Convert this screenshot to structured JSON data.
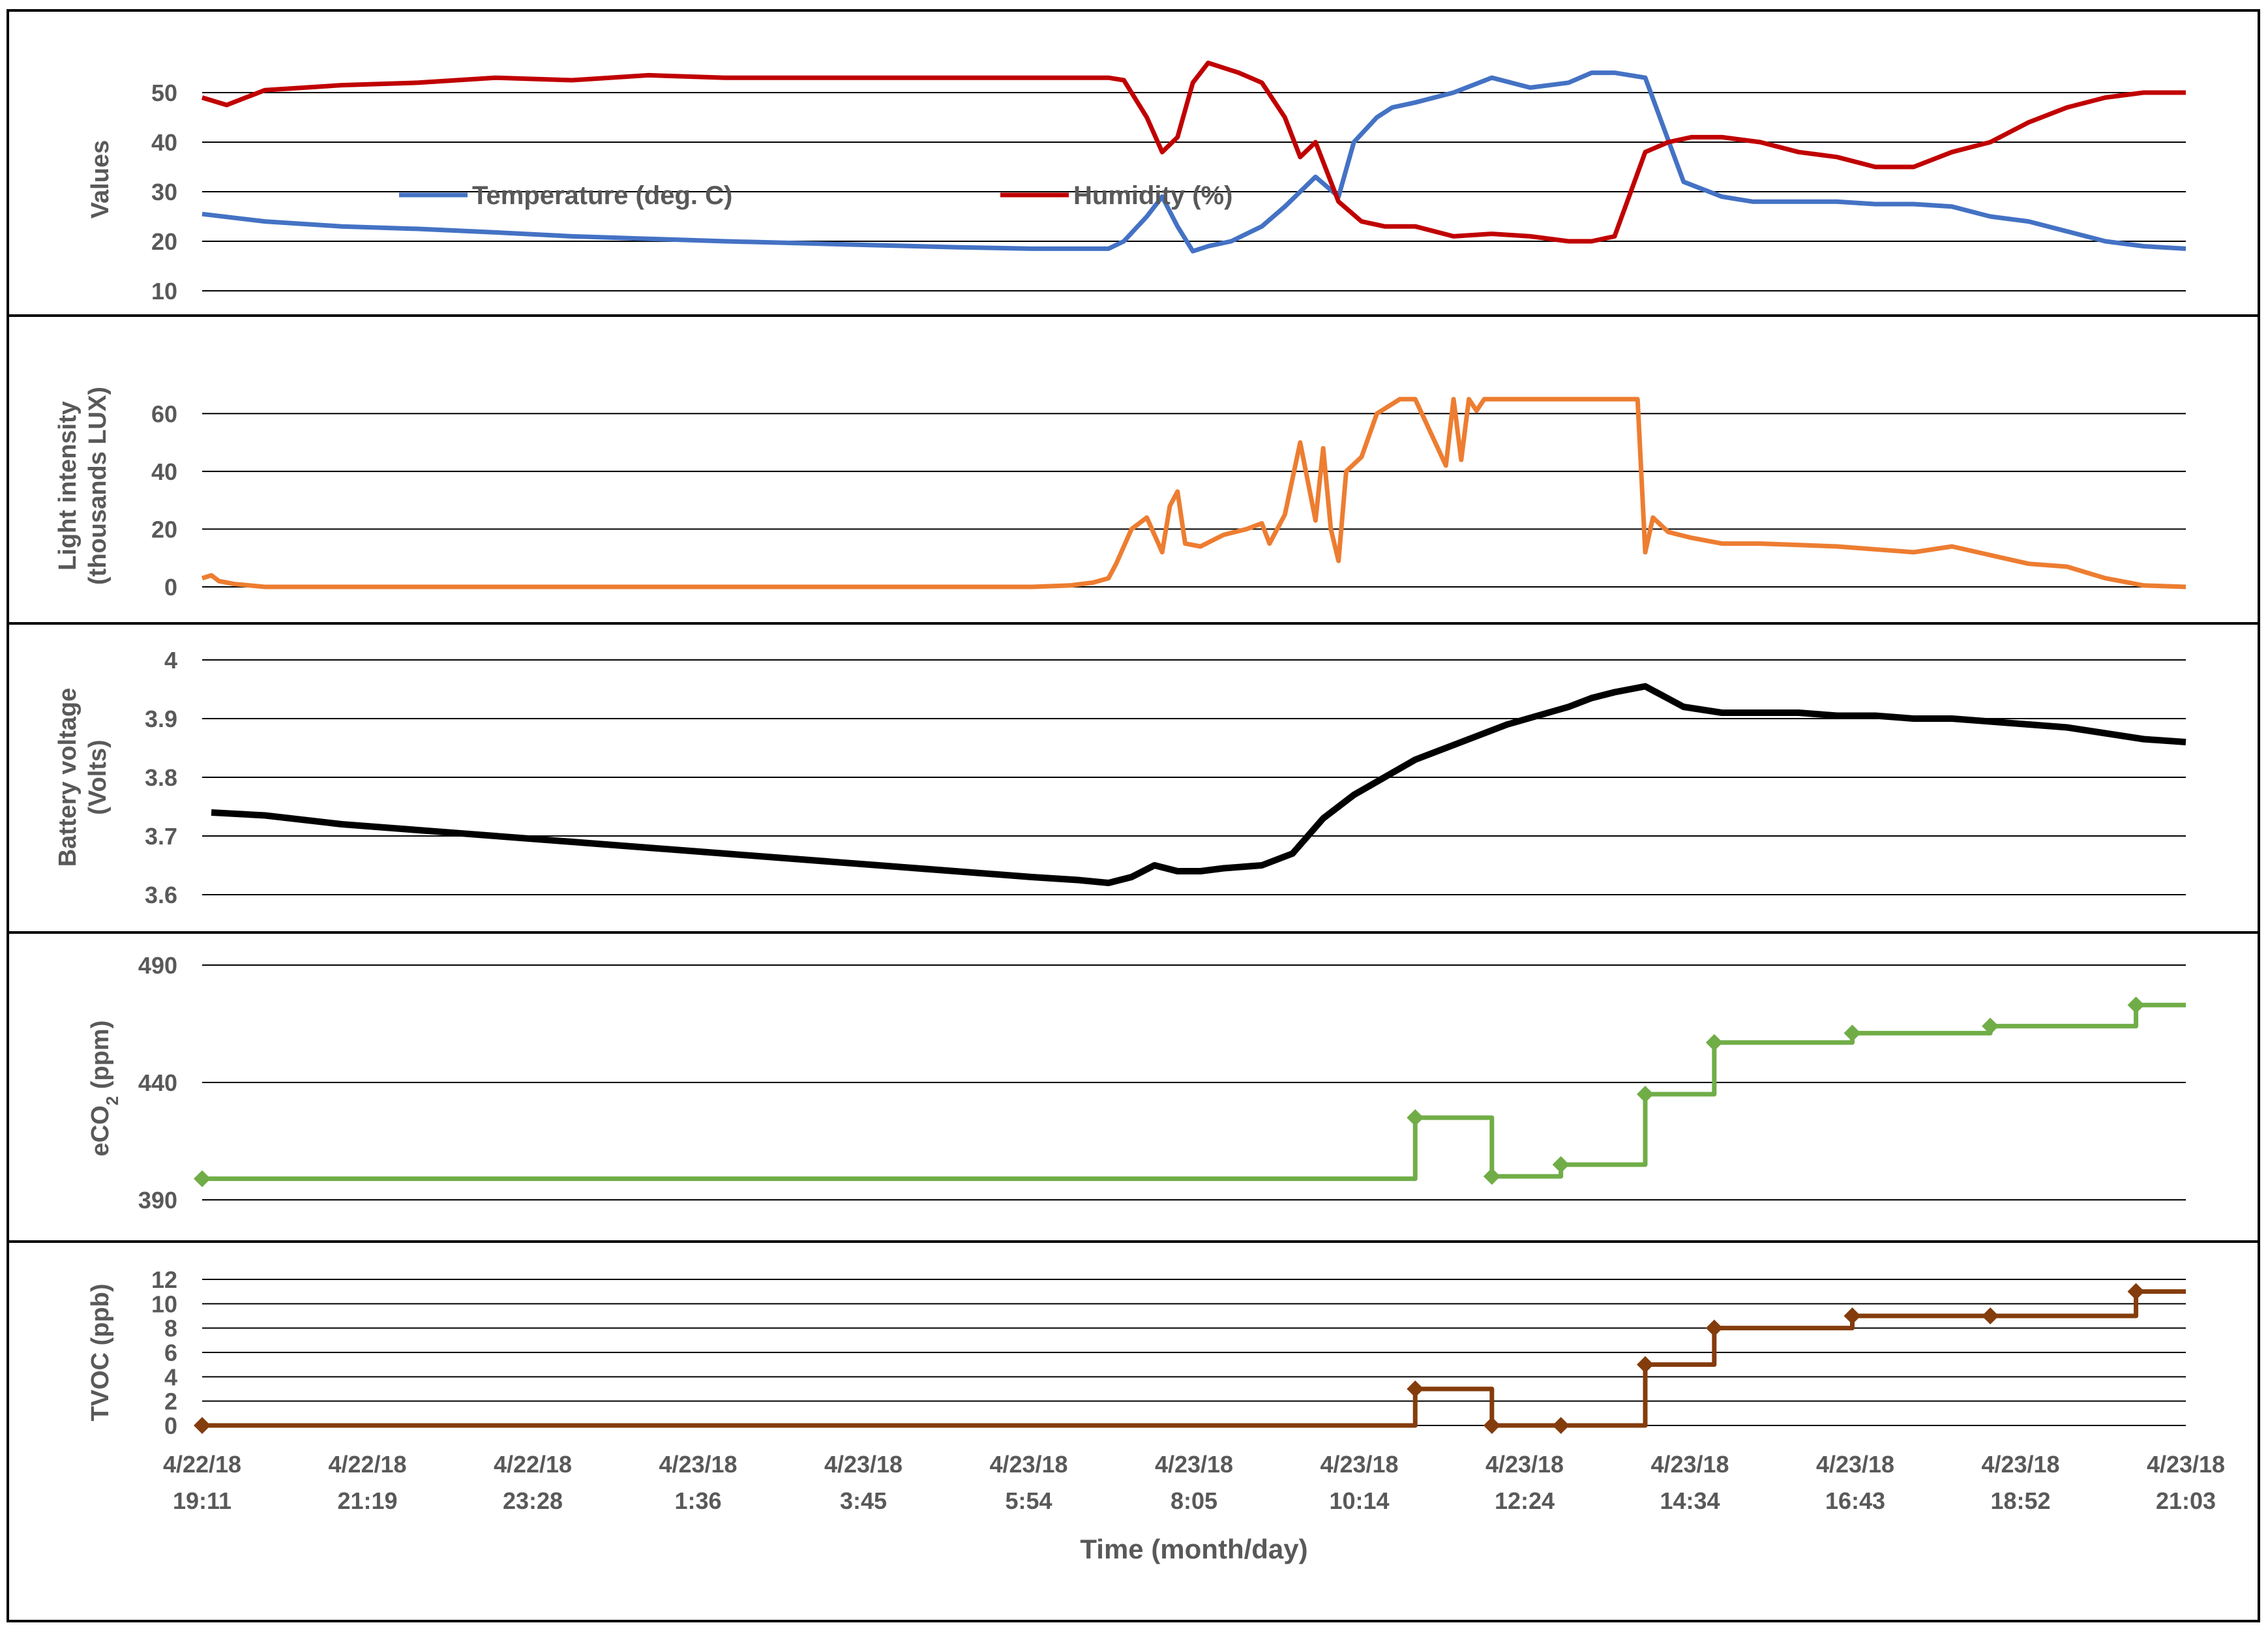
{
  "chart_data": {
    "type": "line",
    "xlabel": "Time (month/day)",
    "x_tick_labels": [
      {
        "date": "4/22/18",
        "time": "19:11"
      },
      {
        "date": "4/22/18",
        "time": "21:19"
      },
      {
        "date": "4/22/18",
        "time": "23:28"
      },
      {
        "date": "4/23/18",
        "time": "1:36"
      },
      {
        "date": "4/23/18",
        "time": "3:45"
      },
      {
        "date": "4/23/18",
        "time": "5:54"
      },
      {
        "date": "4/23/18",
        "time": "8:05"
      },
      {
        "date": "4/23/18",
        "time": "10:14"
      },
      {
        "date": "4/23/18",
        "time": "12:24"
      },
      {
        "date": "4/23/18",
        "time": "14:34"
      },
      {
        "date": "4/23/18",
        "time": "16:43"
      },
      {
        "date": "4/23/18",
        "time": "18:52"
      },
      {
        "date": "4/23/18",
        "time": "21:03"
      }
    ],
    "x_range_hours": [
      19.18,
      45.05
    ],
    "panels": [
      {
        "id": "values",
        "ylabel": "Values",
        "ylim": [
          10,
          55
        ],
        "yticks": [
          10,
          20,
          30,
          40,
          50
        ],
        "legend": "inside",
        "series": [
          {
            "name": "Temperature (deg. C)",
            "color": "#4472C4",
            "x": [
              19.18,
              20.0,
              21.0,
              22.0,
              23.0,
              24.0,
              25.0,
              26.0,
              27.0,
              28.0,
              29.0,
              30.0,
              31.0,
              31.2,
              31.5,
              31.7,
              31.9,
              32.1,
              32.3,
              32.6,
              33.0,
              33.3,
              33.7,
              34.0,
              34.2,
              34.5,
              34.7,
              35.0,
              35.5,
              36.0,
              36.5,
              37.0,
              37.3,
              37.6,
              38.0,
              38.5,
              39.0,
              39.4,
              39.7,
              40.0,
              40.5,
              41.0,
              41.5,
              42.0,
              42.5,
              43.0,
              43.5,
              44.0,
              44.5,
              45.05
            ],
            "y": [
              25.5,
              24,
              23,
              22.5,
              21.8,
              21,
              20.5,
              20,
              19.6,
              19.2,
              18.8,
              18.5,
              18.5,
              20,
              25,
              29,
              23,
              18,
              19,
              20,
              23,
              27,
              33,
              29,
              40,
              45,
              47,
              48,
              50,
              53,
              51,
              52,
              54,
              54,
              53,
              32,
              29,
              28,
              28,
              28,
              28,
              27.5,
              27.5,
              27,
              25,
              24,
              22,
              20,
              19,
              18.5
            ]
          },
          {
            "name": "Humidity (%)",
            "color": "#C00000",
            "x": [
              19.18,
              19.5,
              20.0,
              21.0,
              22.0,
              23.0,
              24.0,
              25.0,
              26.0,
              27.0,
              28.0,
              29.0,
              30.0,
              31.0,
              31.2,
              31.5,
              31.7,
              31.9,
              32.1,
              32.3,
              32.7,
              33.0,
              33.3,
              33.5,
              33.7,
              34.0,
              34.3,
              34.6,
              35.0,
              35.5,
              36.0,
              36.5,
              37.0,
              37.3,
              37.6,
              38.0,
              38.3,
              38.6,
              39.0,
              39.5,
              40.0,
              40.5,
              41.0,
              41.5,
              42.0,
              42.5,
              43.0,
              43.5,
              44.0,
              44.5,
              45.05
            ],
            "y": [
              49,
              47.5,
              50.5,
              51.5,
              52,
              53,
              52.5,
              53.5,
              53,
              53,
              53,
              53,
              53,
              53,
              52.5,
              45,
              38,
              41,
              52,
              56,
              54,
              52,
              45,
              37,
              40,
              28,
              24,
              23,
              23,
              21,
              21.5,
              21,
              20,
              20,
              21,
              38,
              40,
              41,
              41,
              40,
              38,
              37,
              35,
              35,
              38,
              40,
              44,
              47,
              49,
              50,
              50
            ]
          }
        ]
      },
      {
        "id": "light",
        "ylabel": "Light intensity (thousands LUX)",
        "ylabel_lines": [
          "Light intensity",
          "(thousands LUX)"
        ],
        "ylim": [
          0,
          70
        ],
        "yticks": [
          0,
          20,
          40,
          60
        ],
        "series": [
          {
            "name": "Light intensity",
            "color": "#ED7D31",
            "x": [
              19.18,
              19.3,
              19.4,
              19.6,
              20.0,
              21.0,
              23.0,
              25.0,
              27.0,
              29.0,
              30.0,
              30.5,
              30.8,
              31.0,
              31.1,
              31.3,
              31.5,
              31.7,
              31.8,
              31.9,
              32.0,
              32.2,
              32.5,
              32.8,
              33.0,
              33.1,
              33.3,
              33.5,
              33.7,
              33.8,
              33.9,
              34.0,
              34.1,
              34.3,
              34.5,
              34.8,
              35.0,
              35.4,
              35.5,
              35.6,
              35.7,
              35.8,
              35.9,
              36.0,
              36.5,
              37.0,
              37.5,
              37.9,
              38.0,
              38.1,
              38.3,
              38.6,
              39.0,
              39.5,
              40.0,
              40.5,
              41.0,
              41.5,
              42.0,
              42.5,
              43.0,
              43.5,
              44.0,
              44.5,
              45.05
            ],
            "y": [
              3,
              4,
              2,
              1,
              0,
              0,
              0,
              0,
              0,
              0,
              0,
              0.5,
              1.5,
              3,
              8,
              20,
              24,
              12,
              28,
              33,
              15,
              14,
              18,
              20,
              22,
              15,
              25,
              50,
              23,
              48,
              20,
              9,
              40,
              45,
              60,
              65,
              65,
              42,
              65,
              44,
              65,
              61,
              65,
              65,
              65,
              65,
              65,
              65,
              12,
              24,
              19,
              17,
              15,
              15,
              14.5,
              14,
              13,
              12,
              14,
              11,
              8,
              7,
              3,
              0.5,
              0
            ]
          }
        ]
      },
      {
        "id": "battery",
        "ylabel": "Battery voltage (Volts)",
        "ylabel_lines": [
          "Battery voltage",
          "(Volts)"
        ],
        "ylim": [
          3.6,
          4.0
        ],
        "yticks": [
          3.6,
          3.7,
          3.8,
          3.9,
          4.0
        ],
        "series": [
          {
            "name": "Battery voltage",
            "color": "#000000",
            "x": [
              19.3,
              20.0,
              21.0,
              22.0,
              23.0,
              24.0,
              25.0,
              26.0,
              27.0,
              28.0,
              29.0,
              30.0,
              30.6,
              31.0,
              31.3,
              31.6,
              31.9,
              32.2,
              32.5,
              33.0,
              33.4,
              33.8,
              34.2,
              34.6,
              35.0,
              35.4,
              35.8,
              36.2,
              36.6,
              37.0,
              37.3,
              37.6,
              38.0,
              38.5,
              39.0,
              39.5,
              40.0,
              40.5,
              41.0,
              41.5,
              42.0,
              42.5,
              43.0,
              43.5,
              44.0,
              44.5,
              45.05
            ],
            "y": [
              3.74,
              3.735,
              3.72,
              3.71,
              3.7,
              3.69,
              3.68,
              3.67,
              3.66,
              3.65,
              3.64,
              3.63,
              3.625,
              3.62,
              3.63,
              3.65,
              3.64,
              3.64,
              3.645,
              3.65,
              3.67,
              3.73,
              3.77,
              3.8,
              3.83,
              3.85,
              3.87,
              3.89,
              3.905,
              3.92,
              3.935,
              3.945,
              3.955,
              3.92,
              3.91,
              3.91,
              3.91,
              3.905,
              3.905,
              3.9,
              3.9,
              3.895,
              3.89,
              3.885,
              3.875,
              3.865,
              3.86
            ]
          }
        ]
      },
      {
        "id": "eco2",
        "ylabel": "eCO2 (ppm)",
        "ylabel_main": "eCO",
        "ylabel_sub": "2",
        "ylabel_tail": " (ppm)",
        "ylim": [
          385,
          490
        ],
        "yticks": [
          390,
          440,
          490
        ],
        "step": true,
        "series": [
          {
            "name": "eCO2",
            "color": "#70AD47",
            "x": [
              19.18,
              35.0,
              36.0,
              36.9,
              38.0,
              38.9,
              40.7,
              42.5,
              44.4,
              45.05
            ],
            "y": [
              399,
              425,
              400,
              405,
              435,
              457,
              461,
              464,
              473,
              473
            ]
          }
        ]
      },
      {
        "id": "tvoc",
        "ylabel": "TVOC (ppb)",
        "ylim": [
          0,
          12
        ],
        "yticks": [
          0,
          2,
          4,
          6,
          8,
          10,
          12
        ],
        "step": true,
        "series": [
          {
            "name": "TVOC",
            "color": "#843C0C",
            "x": [
              19.18,
              35.0,
              36.0,
              36.9,
              38.0,
              38.9,
              40.7,
              42.5,
              44.4,
              45.05
            ],
            "y": [
              0,
              3,
              0,
              0,
              5,
              8,
              9,
              9,
              11,
              11
            ]
          }
        ]
      }
    ]
  }
}
